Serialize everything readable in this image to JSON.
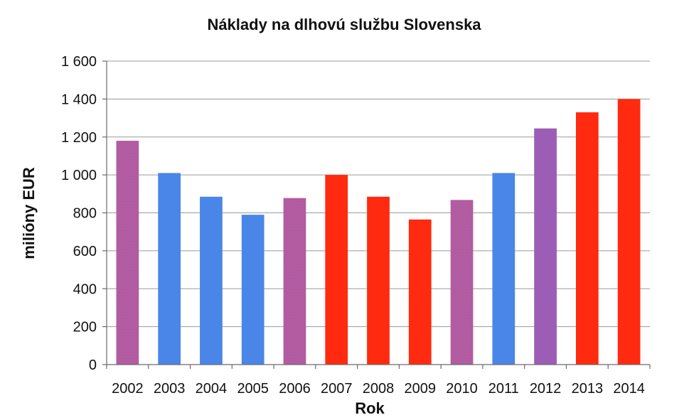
{
  "chart_data": {
    "type": "bar",
    "title": "Náklady na dlhovú službu Slovenska",
    "xlabel": "Rok",
    "ylabel": "milióny EUR",
    "categories": [
      "2002",
      "2003",
      "2004",
      "2005",
      "2006",
      "2007",
      "2008",
      "2009",
      "2010",
      "2011",
      "2012",
      "2013",
      "2014"
    ],
    "values": [
      1180,
      1010,
      885,
      790,
      878,
      1000,
      885,
      765,
      868,
      1010,
      1245,
      1330,
      1400
    ],
    "bar_colors": [
      "#9b5db5",
      "#4a86e8",
      "#4a86e8",
      "#4a86e8",
      "#9b5db5",
      "#ff2a0f",
      "#ff2a0f",
      "#ff2a0f",
      "#9b5db5",
      "#4a86e8",
      "#9b5db5",
      "#ff2a0f",
      "#ff2a0f"
    ],
    "hatched": [
      true,
      false,
      false,
      false,
      true,
      false,
      false,
      false,
      true,
      false,
      false,
      false,
      false
    ],
    "ylim": [
      0,
      1600
    ],
    "yticks": [
      0,
      200,
      400,
      600,
      800,
      1000,
      1200,
      1400,
      1600
    ],
    "ytick_labels": [
      "0",
      "200",
      "400",
      "600",
      "800",
      "1 000",
      "1 200",
      "1 400",
      "1 600"
    ],
    "grid": true,
    "legend": "none"
  }
}
